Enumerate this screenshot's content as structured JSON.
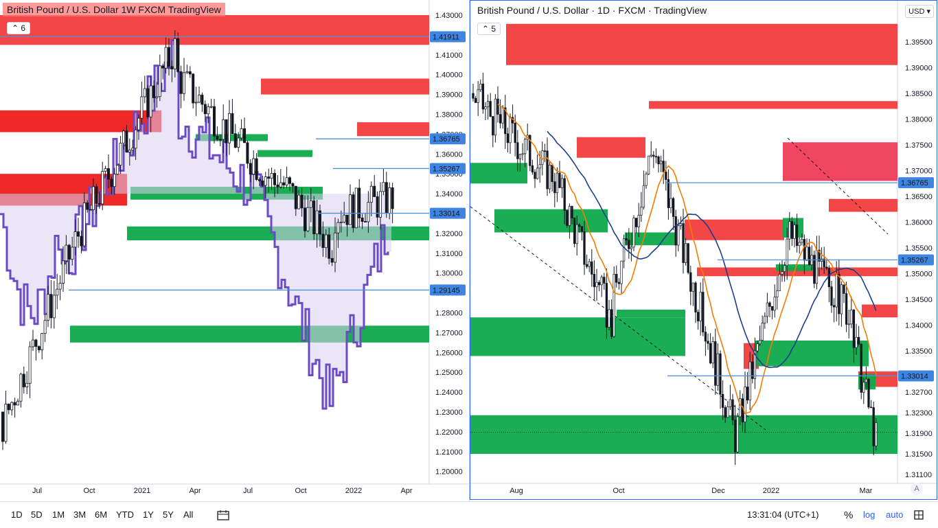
{
  "left_chart": {
    "title": "British Pound / U.S. Dollar  1W  FXCM  TradingView",
    "legend_count": "6",
    "y_ticks": [
      "1.43000",
      "1.42000",
      "1.41000",
      "1.40000",
      "1.39000",
      "1.38000",
      "1.37000",
      "1.36000",
      "1.35000",
      "1.34000",
      "1.33000",
      "1.32000",
      "1.31000",
      "1.30000",
      "1.29000",
      "1.28000",
      "1.27000",
      "1.26000",
      "1.25000",
      "1.24000",
      "1.23000",
      "1.22000",
      "1.21000",
      "1.20000"
    ],
    "x_ticks": [
      "Jul",
      "Oct",
      "2021",
      "Apr",
      "Jul",
      "Oct",
      "2022",
      "Apr"
    ],
    "price_labels": [
      "1.41911",
      "1.36765",
      "1.35267",
      "1.33014",
      "1.29145"
    ]
  },
  "right_chart": {
    "title": "British Pound / U.S. Dollar · 1D · FXCM · TradingView",
    "legend_count": "5",
    "currency": "USD",
    "y_ticks": [
      "1.39500",
      "1.39000",
      "1.38500",
      "1.38000",
      "1.37500",
      "1.37000",
      "1.36500",
      "1.36000",
      "1.35500",
      "1.35000",
      "1.34500",
      "1.34000",
      "1.33500",
      "1.33000",
      "1.32700",
      "1.32300",
      "1.31900",
      "1.31500",
      "1.31100"
    ],
    "x_ticks": [
      "Aug",
      "Oct",
      "Dec",
      "2022",
      "Mar"
    ],
    "price_labels": [
      "1.36765",
      "1.35267",
      "1.33014"
    ],
    "auto_label": "A"
  },
  "bottom_bar": {
    "timeframes": [
      "1D",
      "5D",
      "1M",
      "3M",
      "6M",
      "YTD",
      "1Y",
      "5Y",
      "All"
    ],
    "time": "13:31:04 (UTC+1)",
    "percent": "%",
    "log": "log",
    "auto": "auto"
  },
  "colors": {
    "supply": "#f23c3c",
    "demand": "#0fa94a",
    "line_blue": "#4f8fd8",
    "ma_orange": "#f57c00",
    "ma_navy": "#1a3e8c",
    "envelope": "#6a4bc4"
  }
}
